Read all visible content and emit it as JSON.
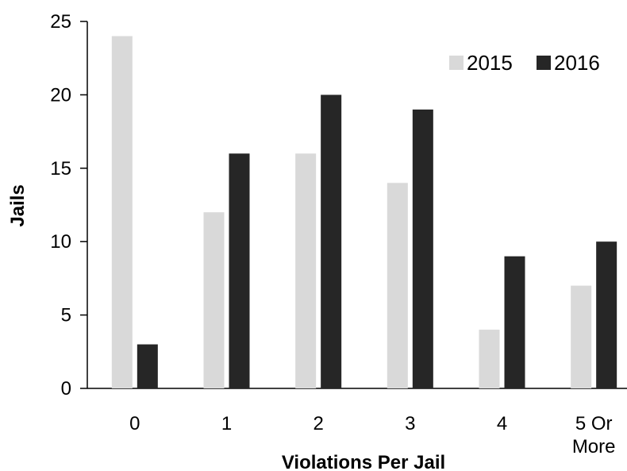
{
  "chart_data": {
    "type": "bar",
    "title": "",
    "xlabel": "Violations Per Jail",
    "ylabel": "Jails",
    "categories": [
      [
        "0"
      ],
      [
        "1"
      ],
      [
        "2"
      ],
      [
        "3"
      ],
      [
        "4"
      ],
      [
        "5 Or",
        "More"
      ]
    ],
    "series": [
      {
        "name": "2015",
        "color": "#d9d9d9",
        "values": [
          24,
          12,
          16,
          14,
          4,
          7
        ]
      },
      {
        "name": "2016",
        "color": "#262626",
        "values": [
          3,
          16,
          20,
          19,
          9,
          10
        ]
      }
    ],
    "ylim": [
      0,
      25
    ],
    "yticks": [
      "0",
      "5",
      "10",
      "15",
      "20",
      "25"
    ],
    "grid": false,
    "legend": "top-right"
  }
}
